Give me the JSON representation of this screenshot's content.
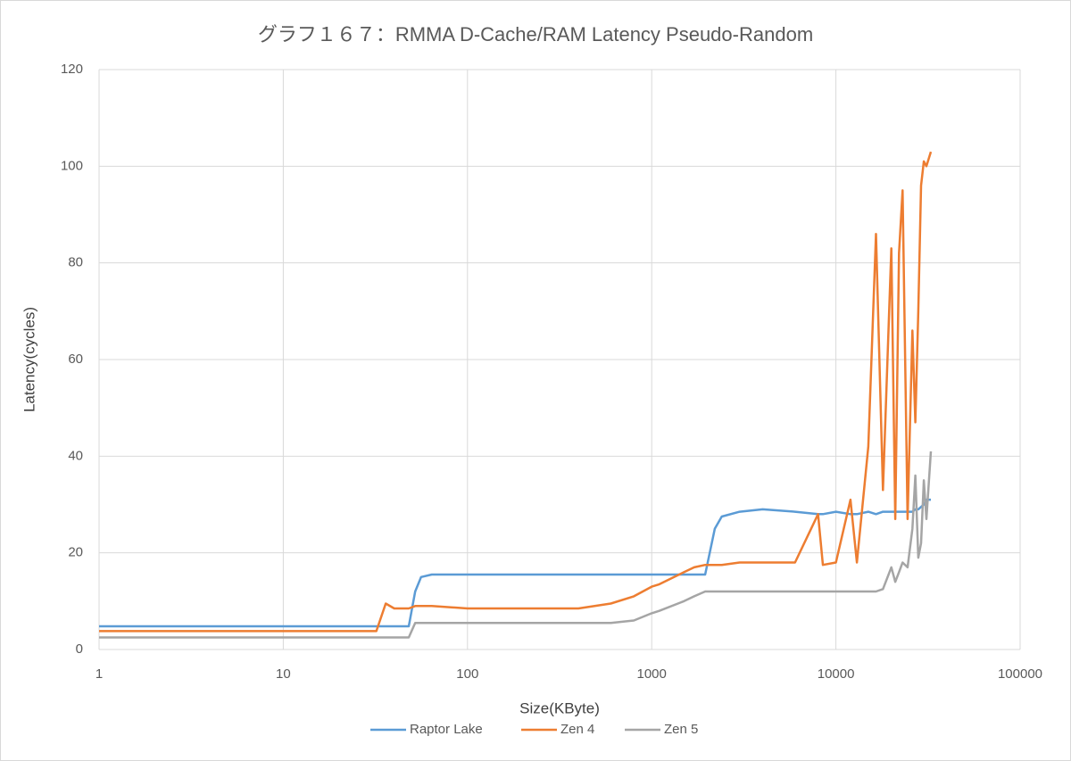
{
  "chart_data": {
    "type": "line",
    "title": "グラフ１６７：RMMA D-Cache/RAM Latency Pseudo-Random",
    "x_label": "Size(KByte)",
    "y_label": "Latency(cycles)",
    "x_log": true,
    "grid": true,
    "legend": "bottom",
    "xlim": [
      1,
      100000
    ],
    "xticks": [
      1,
      10,
      100,
      1000,
      10000,
      100000
    ],
    "ylim": [
      0,
      120
    ],
    "yticks": [
      0,
      20,
      40,
      60,
      80,
      100,
      120
    ],
    "x": [
      1,
      2,
      4,
      8,
      16,
      24,
      32,
      36,
      40,
      48,
      52,
      56,
      64,
      100,
      200,
      400,
      600,
      800,
      1000,
      1100,
      1500,
      1700,
      1950,
      2200,
      2400,
      3000,
      4000,
      6000,
      8000,
      8500,
      10000,
      12000,
      13000,
      15000,
      16500,
      18000,
      20000,
      21000,
      22000,
      23000,
      24500,
      26000,
      27000,
      28000,
      29000,
      30000,
      31000,
      32768
    ],
    "series": [
      {
        "name": "Raptor Lake",
        "color": "#5b9bd5",
        "values": [
          4.8,
          4.8,
          4.8,
          4.8,
          4.8,
          4.8,
          4.8,
          4.8,
          4.8,
          4.8,
          12,
          15,
          15.5,
          15.5,
          15.5,
          15.5,
          15.5,
          15.5,
          15.5,
          15.5,
          15.5,
          15.5,
          15.5,
          25,
          27.5,
          28.5,
          29,
          28.5,
          28,
          28,
          28.5,
          28,
          28,
          28.5,
          28,
          28.5,
          28.5,
          28.5,
          28.5,
          28.5,
          28.5,
          28.5,
          29,
          29,
          29.5,
          30,
          31,
          31
        ]
      },
      {
        "name": "Zen 4",
        "color": "#ed7d31",
        "values": [
          3.8,
          3.8,
          3.8,
          3.8,
          3.8,
          3.8,
          3.8,
          9.5,
          8.5,
          8.5,
          9,
          9,
          9,
          8.5,
          8.5,
          8.5,
          9.5,
          11,
          13,
          13.5,
          16,
          17,
          17.5,
          17.5,
          17.5,
          18,
          18,
          18,
          28,
          17.5,
          18,
          31,
          18,
          42,
          86,
          33,
          83,
          27,
          82,
          95,
          27,
          66,
          47,
          70,
          96,
          101,
          100,
          103
        ]
      },
      {
        "name": "Zen 5",
        "color": "#a5a5a5",
        "values": [
          2.5,
          2.5,
          2.5,
          2.5,
          2.5,
          2.5,
          2.5,
          2.5,
          2.5,
          2.5,
          5.5,
          5.5,
          5.5,
          5.5,
          5.5,
          5.5,
          5.5,
          6,
          7.5,
          8,
          10,
          11,
          12,
          12,
          12,
          12,
          12,
          12,
          12,
          12,
          12,
          12,
          12,
          12,
          12,
          12.5,
          17,
          14,
          16,
          18,
          17,
          25,
          36,
          19,
          22,
          35,
          27,
          41
        ]
      }
    ]
  }
}
